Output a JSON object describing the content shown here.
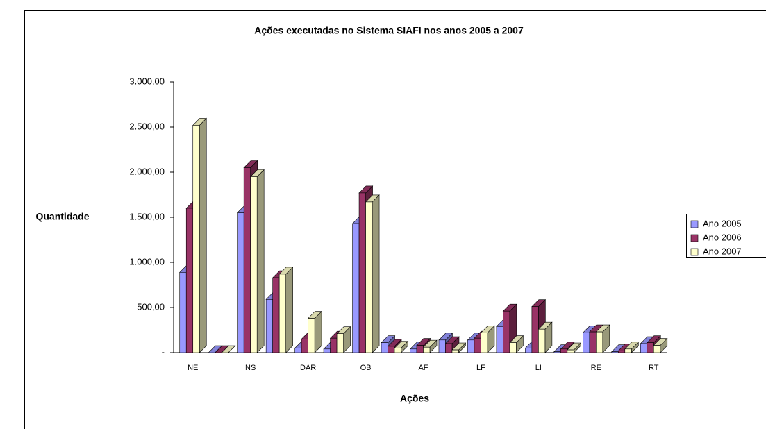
{
  "chart_data": {
    "type": "bar3d",
    "title": "Ações executadas no Sistema SIAFI nos anos 2005 a 2007",
    "x_label": "Ações",
    "y_label": "Quantidade",
    "categories": [
      "NE",
      null,
      "NS",
      null,
      "DAR",
      null,
      "OB",
      null,
      "AF",
      null,
      "LF",
      null,
      "LI",
      null,
      "RE",
      null,
      "RT"
    ],
    "series": [
      {
        "name": "Ano 2005",
        "color": "#9999ff",
        "values": [
          890,
          0,
          1550,
          590,
          50,
          40,
          1430,
          110,
          40,
          140,
          140,
          290,
          50,
          10,
          220,
          10,
          100
        ]
      },
      {
        "name": "Ano 2006",
        "color": "#993366",
        "values": [
          1600,
          0,
          2050,
          830,
          150,
          160,
          1770,
          70,
          80,
          100,
          160,
          460,
          510,
          40,
          230,
          20,
          110
        ]
      },
      {
        "name": "Ano 2007",
        "color": "#ffffcc",
        "values": [
          2520,
          0,
          1950,
          870,
          380,
          210,
          1670,
          50,
          60,
          30,
          220,
          110,
          260,
          30,
          230,
          40,
          80
        ]
      }
    ],
    "ylim": [
      0,
      3000
    ],
    "yticks": [
      {
        "value": 0,
        "label": "-"
      },
      {
        "value": 500,
        "label": "500,00"
      },
      {
        "value": 1000,
        "label": "1.000,00"
      },
      {
        "value": 1500,
        "label": "1.500,00"
      },
      {
        "value": 2000,
        "label": "2.000,00"
      },
      {
        "value": 2500,
        "label": "2.500,00"
      },
      {
        "value": 3000,
        "label": "3.000,00"
      }
    ],
    "legend": "right"
  }
}
